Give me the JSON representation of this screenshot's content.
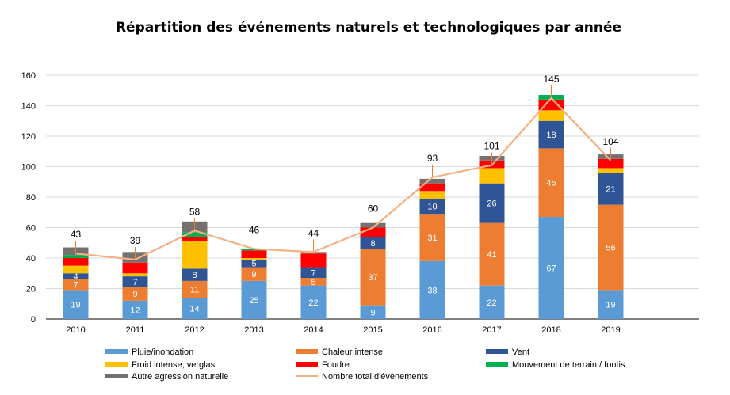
{
  "chart_data": {
    "type": "bar",
    "stacked": true,
    "title": "Répartition des événements naturels et technologiques par année",
    "xlabel": "",
    "ylabel": "",
    "ylim": [
      0,
      160
    ],
    "yticks": [
      0,
      20,
      40,
      60,
      80,
      100,
      120,
      140,
      160
    ],
    "grid": true,
    "legend_position": "bottom",
    "categories": [
      "2010",
      "2011",
      "2012",
      "2013",
      "2014",
      "2015",
      "2016",
      "2017",
      "2018",
      "2019"
    ],
    "series": [
      {
        "name": "Pluie/inondation",
        "color": "#5B9BD5",
        "values": [
          19,
          12,
          14,
          25,
          22,
          9,
          38,
          22,
          67,
          19
        ],
        "labeled": true
      },
      {
        "name": "Chaleur intense",
        "color": "#ED7D31",
        "values": [
          7,
          9,
          11,
          9,
          5,
          37,
          31,
          41,
          45,
          56
        ],
        "labeled": true
      },
      {
        "name": "Vent",
        "color": "#2F5597",
        "values": [
          4,
          7,
          8,
          5,
          7,
          8,
          10,
          26,
          18,
          21
        ],
        "labeled": true
      },
      {
        "name": "Froid intense, verglas",
        "color": "#FFC000",
        "values": [
          5,
          2,
          18,
          1,
          0,
          0,
          5,
          10,
          7,
          3
        ],
        "labeled": false
      },
      {
        "name": "Foudre",
        "color": "#FF0000",
        "values": [
          5,
          7,
          3,
          5,
          9,
          6,
          5,
          5,
          7,
          6
        ],
        "labeled": false
      },
      {
        "name": "Mouvement de terrain / fontis",
        "color": "#00B050",
        "values": [
          2,
          0,
          3,
          1,
          0,
          0,
          0,
          0,
          3,
          0
        ],
        "labeled": false
      },
      {
        "name": "Autre agression naturelle",
        "color": "#767171",
        "values": [
          5,
          7,
          7,
          0,
          1,
          3,
          3,
          3,
          0,
          3
        ],
        "labeled": false
      }
    ],
    "line": {
      "name": "Nombre total d'évènements",
      "color": "#F4B183",
      "values": [
        43,
        39,
        58,
        46,
        44,
        60,
        93,
        101,
        145,
        104
      ]
    }
  }
}
